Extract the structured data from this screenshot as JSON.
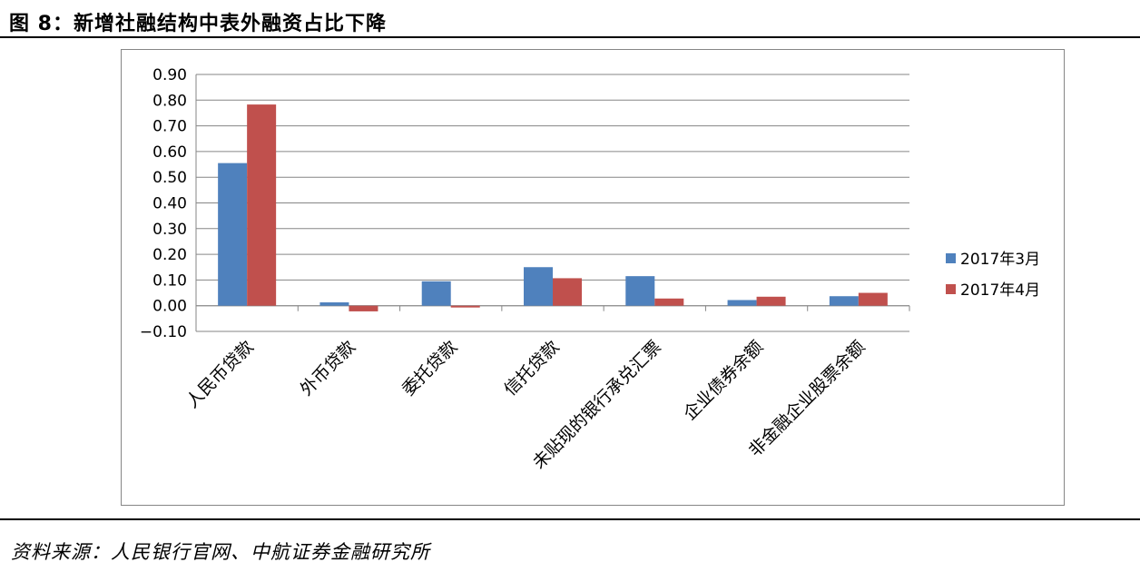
{
  "figure": {
    "title": "图 8：新增社融结构中表外融资占比下降",
    "source": "资料来源：人民银行官网、中航证券金融研究所"
  },
  "chart_data": {
    "type": "bar",
    "title": "",
    "xlabel": "",
    "ylabel": "",
    "categories": [
      "人民币贷款",
      "外币贷款",
      "委托贷款",
      "信托贷款",
      "未贴现的银行承兑汇票",
      "企业债券余额",
      "非金融企业股票余额"
    ],
    "series": [
      {
        "name": "2017年3月",
        "color": "#4f81bd",
        "values": [
          0.555,
          0.013,
          0.095,
          0.15,
          0.115,
          0.022,
          0.037
        ]
      },
      {
        "name": "2017年4月",
        "color": "#c0504d",
        "values": [
          0.783,
          -0.022,
          -0.007,
          0.107,
          0.028,
          0.035,
          0.05
        ]
      }
    ],
    "ylim": [
      -0.1,
      0.9
    ],
    "yticks": [
      "−0.10",
      "0.00",
      "0.10",
      "0.20",
      "0.30",
      "0.40",
      "0.50",
      "0.60",
      "0.70",
      "0.80",
      "0.90"
    ],
    "grid": true,
    "legend_position": "right"
  }
}
